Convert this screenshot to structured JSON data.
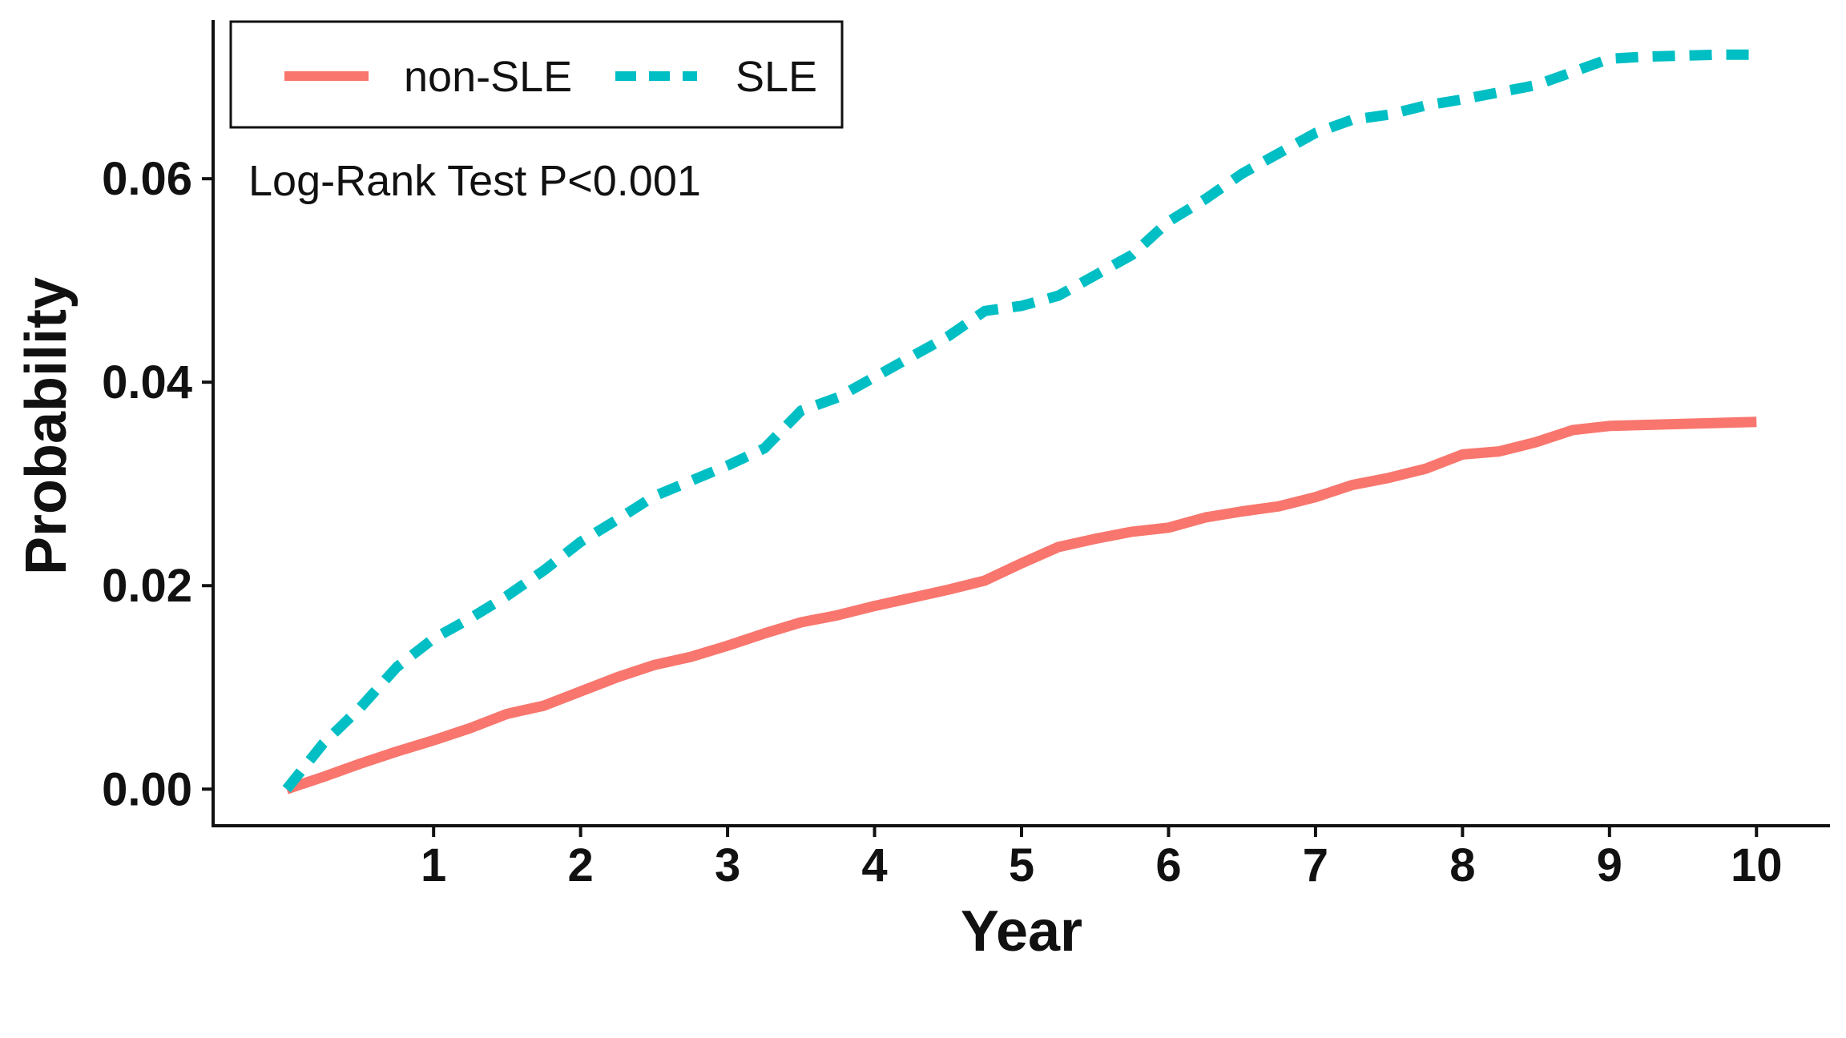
{
  "chart_data": {
    "type": "line",
    "title": "",
    "xlabel": "Year",
    "ylabel": "Probability",
    "xlim": [
      -0.5,
      10.5
    ],
    "ylim": [
      -0.0036,
      0.0756
    ],
    "x_ticks": [
      1,
      2,
      3,
      4,
      5,
      6,
      7,
      8,
      9,
      10
    ],
    "x_tick_labels": [
      "1",
      "2",
      "3",
      "4",
      "5",
      "6",
      "7",
      "8",
      "9",
      "10"
    ],
    "y_ticks": [
      0.0,
      0.02,
      0.04,
      0.06
    ],
    "y_tick_labels": [
      "0.00",
      "0.02",
      "0.04",
      "0.06"
    ],
    "grid": false,
    "legend": {
      "placement": "top-left",
      "entries": [
        "non-SLE",
        "SLE"
      ]
    },
    "annotation": "Log-Rank Test P<0.001",
    "series": [
      {
        "name": "non-SLE",
        "color": "#F8766D",
        "dash": "solid",
        "x": [
          0,
          0.25,
          0.5,
          0.75,
          1.0,
          1.25,
          1.5,
          1.75,
          2.0,
          2.25,
          2.5,
          2.75,
          3.0,
          3.25,
          3.5,
          3.75,
          4.0,
          4.25,
          4.5,
          4.75,
          5.0,
          5.25,
          5.5,
          5.75,
          6.0,
          6.25,
          6.5,
          6.75,
          7.0,
          7.25,
          7.5,
          7.75,
          8.0,
          8.25,
          8.5,
          8.75,
          9.0,
          9.25,
          9.5,
          9.75,
          10.0
        ],
        "y": [
          0.0,
          0.0012,
          0.0025,
          0.0037,
          0.0048,
          0.006,
          0.0074,
          0.0082,
          0.0096,
          0.011,
          0.0122,
          0.013,
          0.0141,
          0.0153,
          0.0164,
          0.0171,
          0.018,
          0.0188,
          0.0196,
          0.0205,
          0.0222,
          0.0238,
          0.0246,
          0.0253,
          0.0257,
          0.0267,
          0.0273,
          0.0278,
          0.0287,
          0.0299,
          0.0306,
          0.0315,
          0.0329,
          0.0332,
          0.0341,
          0.0353,
          0.0357,
          0.0358,
          0.0359,
          0.036,
          0.0361
        ]
      },
      {
        "name": "SLE",
        "color": "#00BFC4",
        "dash": "dashed",
        "x": [
          0,
          0.25,
          0.5,
          0.75,
          1.0,
          1.25,
          1.5,
          1.75,
          2.0,
          2.25,
          2.5,
          2.75,
          3.0,
          3.25,
          3.5,
          3.75,
          4.0,
          4.25,
          4.5,
          4.75,
          5.0,
          5.25,
          5.5,
          5.75,
          6.0,
          6.25,
          6.5,
          6.75,
          7.0,
          7.25,
          7.5,
          7.75,
          8.0,
          8.25,
          8.5,
          8.75,
          9.0,
          9.25,
          9.5,
          9.75,
          10.0
        ],
        "y": [
          0.0,
          0.0045,
          0.008,
          0.012,
          0.0148,
          0.0168,
          0.019,
          0.0215,
          0.0243,
          0.0265,
          0.0288,
          0.0303,
          0.0318,
          0.0335,
          0.0372,
          0.0385,
          0.0405,
          0.0425,
          0.0445,
          0.047,
          0.0475,
          0.0485,
          0.0505,
          0.0525,
          0.0558,
          0.058,
          0.0605,
          0.0625,
          0.0645,
          0.0658,
          0.0663,
          0.0672,
          0.0678,
          0.0685,
          0.0692,
          0.0705,
          0.0718,
          0.072,
          0.0721,
          0.0722,
          0.0722
        ]
      }
    ]
  }
}
